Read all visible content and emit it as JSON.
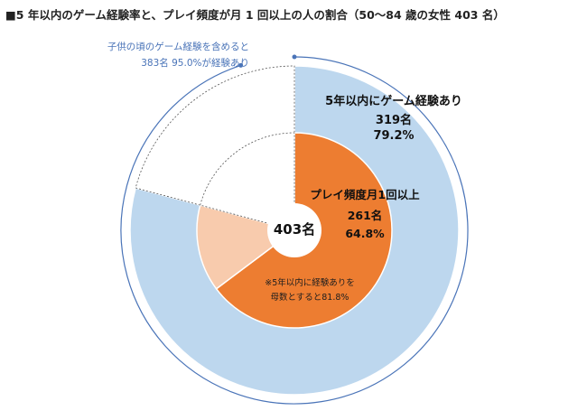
{
  "title": "■5 年以内のゲーム経験率と、プレイ頻度が月 1 回以上の人の割合（50～84 歳の女性 403 名）",
  "chart_data": {
    "type": "pie",
    "title": "■5 年以内のゲーム経験率と、プレイ頻度が月 1 回以上の人の割合（50～84 歳の女性 403 名）",
    "total": 403,
    "center_label": "403名",
    "outer_ring": {
      "slices": [
        {
          "key": "experienced",
          "value": 319,
          "percent": 79.2,
          "color": "#bdd7ee"
        },
        {
          "key": "not_experienced",
          "value": 84,
          "percent": 20.8,
          "color": "#ffffff"
        }
      ],
      "label": [
        "5年以内にゲーム経験あり",
        "319名",
        "79.2%"
      ]
    },
    "inner_ring": {
      "slices": [
        {
          "key": "monthly",
          "value": 261,
          "percent": 64.8,
          "color": "#ed7d31"
        },
        {
          "key": "experienced_less",
          "value": 58,
          "percent": 14.4,
          "color": "#f8cbad"
        },
        {
          "key": "not_experienced",
          "value": 84,
          "percent": 20.8,
          "color": "#ffffff"
        }
      ],
      "label": [
        "プレイ頻度月1回以上",
        "261名",
        "64.8%"
      ]
    },
    "bracket": {
      "percent": 95.0,
      "color": "#4a74b8",
      "label": [
        "子供の頃のゲーム経験を含めると",
        "383名 95.0%が経験あり"
      ]
    },
    "footnote": [
      "※5年以内に経験ありを",
      "母数とすると81.8%"
    ]
  }
}
